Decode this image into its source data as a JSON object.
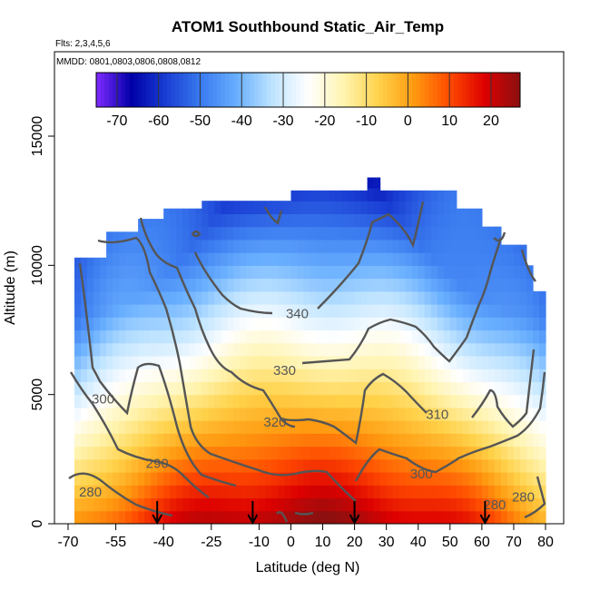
{
  "chart_data": {
    "type": "heatmap",
    "title": "ATOM1 Southbound Static_Air_Temp",
    "annotations": {
      "flights": "Flts: 2,3,4,5,6",
      "dates": "MMDD: 0801,0803,0806,0808,0812"
    },
    "xlabel": "Latitude (deg N)",
    "ylabel": "Altitude (m)",
    "xlim": [
      -70,
      80
    ],
    "ylim": [
      0,
      17500
    ],
    "x_ticks": [
      "-70",
      "-55",
      "-40",
      "-25",
      "-10",
      "0",
      "10",
      "20",
      "30",
      "40",
      "50",
      "60",
      "70",
      "80"
    ],
    "x_tick_values": [
      -70,
      -55,
      -40,
      -25,
      -10,
      0,
      10,
      20,
      30,
      40,
      50,
      60,
      70,
      80
    ],
    "y_ticks": [
      "0",
      "5000",
      "10000",
      "15000"
    ],
    "y_tick_values": [
      0,
      5000,
      10000,
      15000
    ],
    "colorbar": {
      "range": [
        -75,
        27
      ],
      "tick_labels": [
        "-70",
        "-60",
        "-50",
        "-40",
        "-30",
        "-20",
        "-10",
        "0",
        "10",
        "20"
      ],
      "tick_values": [
        -70,
        -60,
        -50,
        -40,
        -30,
        -20,
        -10,
        0,
        10,
        20
      ],
      "colors": [
        "#7f2aff",
        "#0000a8",
        "#1a3fd4",
        "#3b7cf0",
        "#6ab0ff",
        "#bfe4ff",
        "#ffffff",
        "#fff4b0",
        "#ffd24a",
        "#ff9a10",
        "#ff4a00",
        "#dd0000",
        "#8a1010"
      ]
    },
    "coverage_top_altitude": [
      {
        "lat_from": -68,
        "lat_to": -58,
        "alt": 10300
      },
      {
        "lat_from": -58,
        "lat_to": -48,
        "alt": 11300
      },
      {
        "lat_from": -48,
        "lat_to": -40,
        "alt": 11800
      },
      {
        "lat_from": -40,
        "lat_to": -28,
        "alt": 12200
      },
      {
        "lat_from": -28,
        "lat_to": 0,
        "alt": 12500
      },
      {
        "lat_from": 0,
        "lat_to": 25,
        "alt": 12900
      },
      {
        "lat_from": 25,
        "lat_to": 29,
        "alt": 13400
      },
      {
        "lat_from": 29,
        "lat_to": 52,
        "alt": 12900
      },
      {
        "lat_from": 52,
        "lat_to": 60,
        "alt": 12200
      },
      {
        "lat_from": 60,
        "lat_to": 66,
        "alt": 11500
      },
      {
        "lat_from": 66,
        "lat_to": 74,
        "alt": 10800
      },
      {
        "lat_from": 74,
        "lat_to": 77,
        "alt": 10000
      },
      {
        "lat_from": 77,
        "lat_to": 80,
        "alt": 9000
      }
    ],
    "contour_labels": [
      {
        "label": "340",
        "lat": 2,
        "alt": 8100
      },
      {
        "label": "330",
        "lat": -2,
        "alt": 5900
      },
      {
        "label": "320",
        "lat": -5,
        "alt": 3900
      },
      {
        "label": "310",
        "lat": 46,
        "alt": 4200
      },
      {
        "label": "300",
        "lat": -59,
        "alt": 4800
      },
      {
        "label": "300",
        "lat": 41,
        "alt": 1900
      },
      {
        "label": "290",
        "lat": -42,
        "alt": 2300
      },
      {
        "label": "280",
        "lat": -63,
        "alt": 1200
      },
      {
        "label": "280",
        "lat": 64,
        "alt": 700
      },
      {
        "label": "280",
        "lat": 73,
        "alt": 1000
      }
    ],
    "profile_markers_lat": [
      -42,
      -12,
      20,
      61
    ]
  }
}
